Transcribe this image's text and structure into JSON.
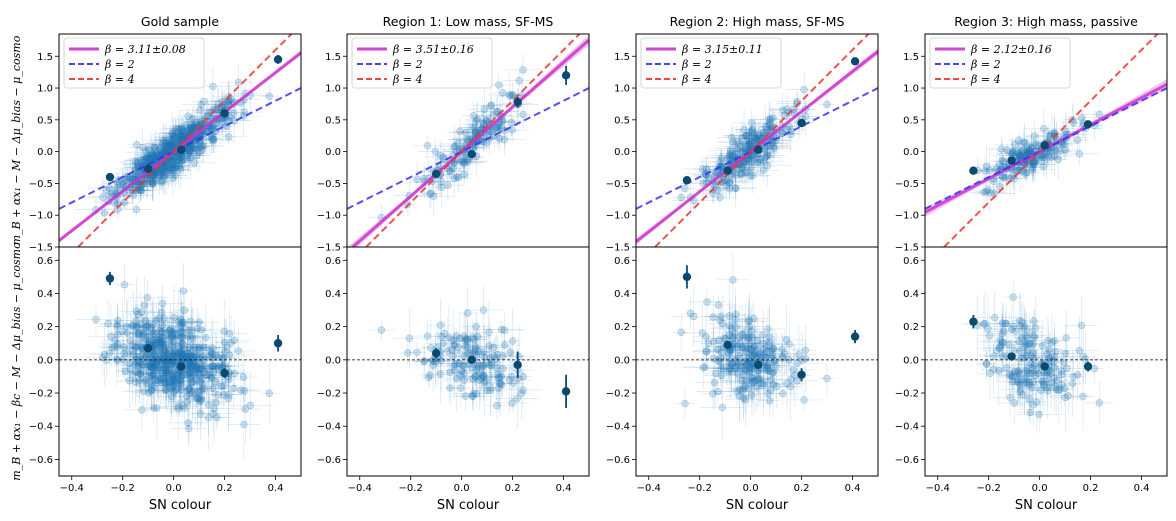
{
  "figure": {
    "xlabel": "SN colour",
    "top_ylabel": "m_B + αx₁ − M − Δμ_bias − μ_cosmo",
    "bottom_ylabel": "m_B + αx₁ − βc − M − Δμ_bias − μ_cosmo",
    "colors": {
      "fit": "#cc33cc",
      "beta2": "#3333ee",
      "beta4": "#ee3333",
      "points": "#1f77b4",
      "binned": "#0b4a6e"
    }
  },
  "chart_data": [
    {
      "type": "scatter",
      "title": "Gold sample",
      "xlim": [
        -0.45,
        0.5
      ],
      "top_ylim": [
        -1.5,
        1.85
      ],
      "bottom_ylim": [
        -0.7,
        0.68
      ],
      "xticks": [
        -0.4,
        -0.2,
        0.0,
        0.2,
        0.4
      ],
      "top_yticks": [
        -1.5,
        -1.0,
        -0.5,
        0.0,
        0.5,
        1.0,
        1.5
      ],
      "bottom_yticks": [
        -0.6,
        -0.4,
        -0.2,
        0.0,
        0.2,
        0.4,
        0.6
      ],
      "legend": {
        "fit_label": "β = 3.11±0.08",
        "beta2_label": "β = 2",
        "beta4_label": "β = 4"
      },
      "fit_slope": 3.11,
      "fit_err": 0.08,
      "binned_top": [
        {
          "x": -0.25,
          "y": -0.4,
          "err": 0.05
        },
        {
          "x": -0.1,
          "y": -0.27,
          "err": 0.04
        },
        {
          "x": 0.03,
          "y": 0.03,
          "err": 0.03
        },
        {
          "x": 0.2,
          "y": 0.6,
          "err": 0.05
        },
        {
          "x": 0.41,
          "y": 1.45,
          "err": 0.07
        }
      ],
      "binned_bottom": [
        {
          "x": -0.25,
          "y": 0.49,
          "err": 0.04
        },
        {
          "x": -0.1,
          "y": 0.07,
          "err": 0.02
        },
        {
          "x": 0.03,
          "y": -0.04,
          "err": 0.02
        },
        {
          "x": 0.2,
          "y": -0.08,
          "err": 0.03
        },
        {
          "x": 0.41,
          "y": 0.1,
          "err": 0.05
        }
      ],
      "scatter": {
        "n": 480,
        "xmean": 0.0,
        "xsd": 0.11,
        "slope": 3.0,
        "sd": 0.16,
        "bottom_offset": 0.0
      }
    },
    {
      "type": "scatter",
      "title": "Region 1: Low mass, SF-MS",
      "xlim": [
        -0.45,
        0.5
      ],
      "top_ylim": [
        -1.5,
        1.85
      ],
      "bottom_ylim": [
        -0.7,
        0.68
      ],
      "xticks": [
        -0.4,
        -0.2,
        0.0,
        0.2,
        0.4
      ],
      "top_yticks": [
        -1.5,
        -1.0,
        -0.5,
        0.0,
        0.5,
        1.0,
        1.5
      ],
      "bottom_yticks": [
        -0.6,
        -0.4,
        -0.2,
        0.0,
        0.2,
        0.4,
        0.6
      ],
      "legend": {
        "fit_label": "β = 3.51±0.16",
        "beta2_label": "β = 2",
        "beta4_label": "β = 4"
      },
      "fit_slope": 3.51,
      "fit_err": 0.16,
      "binned_top": [
        {
          "x": -0.1,
          "y": -0.35,
          "err": 0.04
        },
        {
          "x": 0.04,
          "y": -0.04,
          "err": 0.03
        },
        {
          "x": 0.22,
          "y": 0.78,
          "err": 0.08
        },
        {
          "x": 0.41,
          "y": 1.2,
          "err": 0.15
        }
      ],
      "binned_bottom": [
        {
          "x": -0.1,
          "y": 0.04,
          "err": 0.03
        },
        {
          "x": 0.04,
          "y": 0.0,
          "err": 0.02
        },
        {
          "x": 0.22,
          "y": -0.03,
          "err": 0.08
        },
        {
          "x": 0.41,
          "y": -0.19,
          "err": 0.1
        }
      ],
      "scatter": {
        "n": 140,
        "xmean": 0.02,
        "xsd": 0.1,
        "slope": 3.4,
        "sd": 0.18,
        "bottom_offset": 0.0
      }
    },
    {
      "type": "scatter",
      "title": "Region 2: High mass, SF-MS",
      "xlim": [
        -0.45,
        0.5
      ],
      "top_ylim": [
        -1.5,
        1.85
      ],
      "bottom_ylim": [
        -0.7,
        0.68
      ],
      "xticks": [
        -0.4,
        -0.2,
        0.0,
        0.2,
        0.4
      ],
      "top_yticks": [
        -1.5,
        -1.0,
        -0.5,
        0.0,
        0.5,
        1.0,
        1.5
      ],
      "bottom_yticks": [
        -0.6,
        -0.4,
        -0.2,
        0.0,
        0.2,
        0.4,
        0.6
      ],
      "legend": {
        "fit_label": "β = 3.15±0.11",
        "beta2_label": "β = 2",
        "beta4_label": "β = 4"
      },
      "fit_slope": 3.15,
      "fit_err": 0.11,
      "binned_top": [
        {
          "x": -0.25,
          "y": -0.45,
          "err": 0.05
        },
        {
          "x": -0.09,
          "y": -0.3,
          "err": 0.04
        },
        {
          "x": 0.03,
          "y": 0.03,
          "err": 0.03
        },
        {
          "x": 0.2,
          "y": 0.45,
          "err": 0.05
        },
        {
          "x": 0.41,
          "y": 1.42,
          "err": 0.05
        }
      ],
      "binned_bottom": [
        {
          "x": -0.25,
          "y": 0.5,
          "err": 0.07
        },
        {
          "x": -0.09,
          "y": 0.09,
          "err": 0.02
        },
        {
          "x": 0.03,
          "y": -0.03,
          "err": 0.02
        },
        {
          "x": 0.2,
          "y": -0.09,
          "err": 0.04
        },
        {
          "x": 0.41,
          "y": 0.14,
          "err": 0.04
        }
      ],
      "scatter": {
        "n": 210,
        "xmean": 0.0,
        "xsd": 0.1,
        "slope": 3.0,
        "sd": 0.17,
        "bottom_offset": 0.0
      }
    },
    {
      "type": "scatter",
      "title": "Region 3: High mass, passive",
      "xlim": [
        -0.45,
        0.5
      ],
      "top_ylim": [
        -1.5,
        1.85
      ],
      "bottom_ylim": [
        -0.7,
        0.68
      ],
      "xticks": [
        -0.4,
        -0.2,
        0.0,
        0.2,
        0.4
      ],
      "top_yticks": [
        -1.5,
        -1.0,
        -0.5,
        0.0,
        0.5,
        1.0,
        1.5
      ],
      "bottom_yticks": [
        -0.6,
        -0.4,
        -0.2,
        0.0,
        0.2,
        0.4,
        0.6
      ],
      "legend": {
        "fit_label": "β = 2.12±0.16",
        "beta2_label": "β = 2",
        "beta4_label": "β = 4"
      },
      "fit_slope": 2.12,
      "fit_err": 0.16,
      "binned_top": [
        {
          "x": -0.26,
          "y": -0.3,
          "err": 0.04
        },
        {
          "x": -0.11,
          "y": -0.14,
          "err": 0.03
        },
        {
          "x": 0.02,
          "y": 0.1,
          "err": 0.03
        },
        {
          "x": 0.19,
          "y": 0.43,
          "err": 0.04
        }
      ],
      "binned_bottom": [
        {
          "x": -0.26,
          "y": 0.23,
          "err": 0.04
        },
        {
          "x": -0.11,
          "y": 0.02,
          "err": 0.02
        },
        {
          "x": 0.02,
          "y": -0.04,
          "err": 0.02
        },
        {
          "x": 0.19,
          "y": -0.04,
          "err": 0.03
        }
      ],
      "scatter": {
        "n": 160,
        "xmean": -0.02,
        "xsd": 0.09,
        "slope": 2.0,
        "sd": 0.14,
        "bottom_offset": -0.02
      }
    }
  ]
}
